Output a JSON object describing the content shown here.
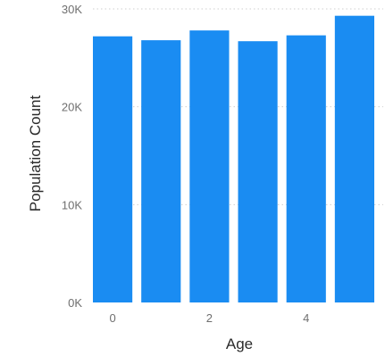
{
  "chart_data": {
    "type": "bar",
    "x": [
      0,
      1,
      2,
      3,
      4,
      5
    ],
    "values": [
      27200,
      26800,
      27800,
      26700,
      27300,
      29300
    ],
    "xlabel": "Age",
    "ylabel": "Population Count",
    "ylim": [
      0,
      30000
    ],
    "yticks": [
      {
        "value": 0,
        "label": "0K"
      },
      {
        "value": 10000,
        "label": "10K"
      },
      {
        "value": 20000,
        "label": "20K"
      },
      {
        "value": 30000,
        "label": "30K"
      }
    ],
    "xticks": [
      {
        "value": 0,
        "label": "0"
      },
      {
        "value": 2,
        "label": "2"
      },
      {
        "value": 4,
        "label": "4"
      }
    ],
    "bar_color": "#1a8cf2",
    "grid": true,
    "legend": "none"
  }
}
